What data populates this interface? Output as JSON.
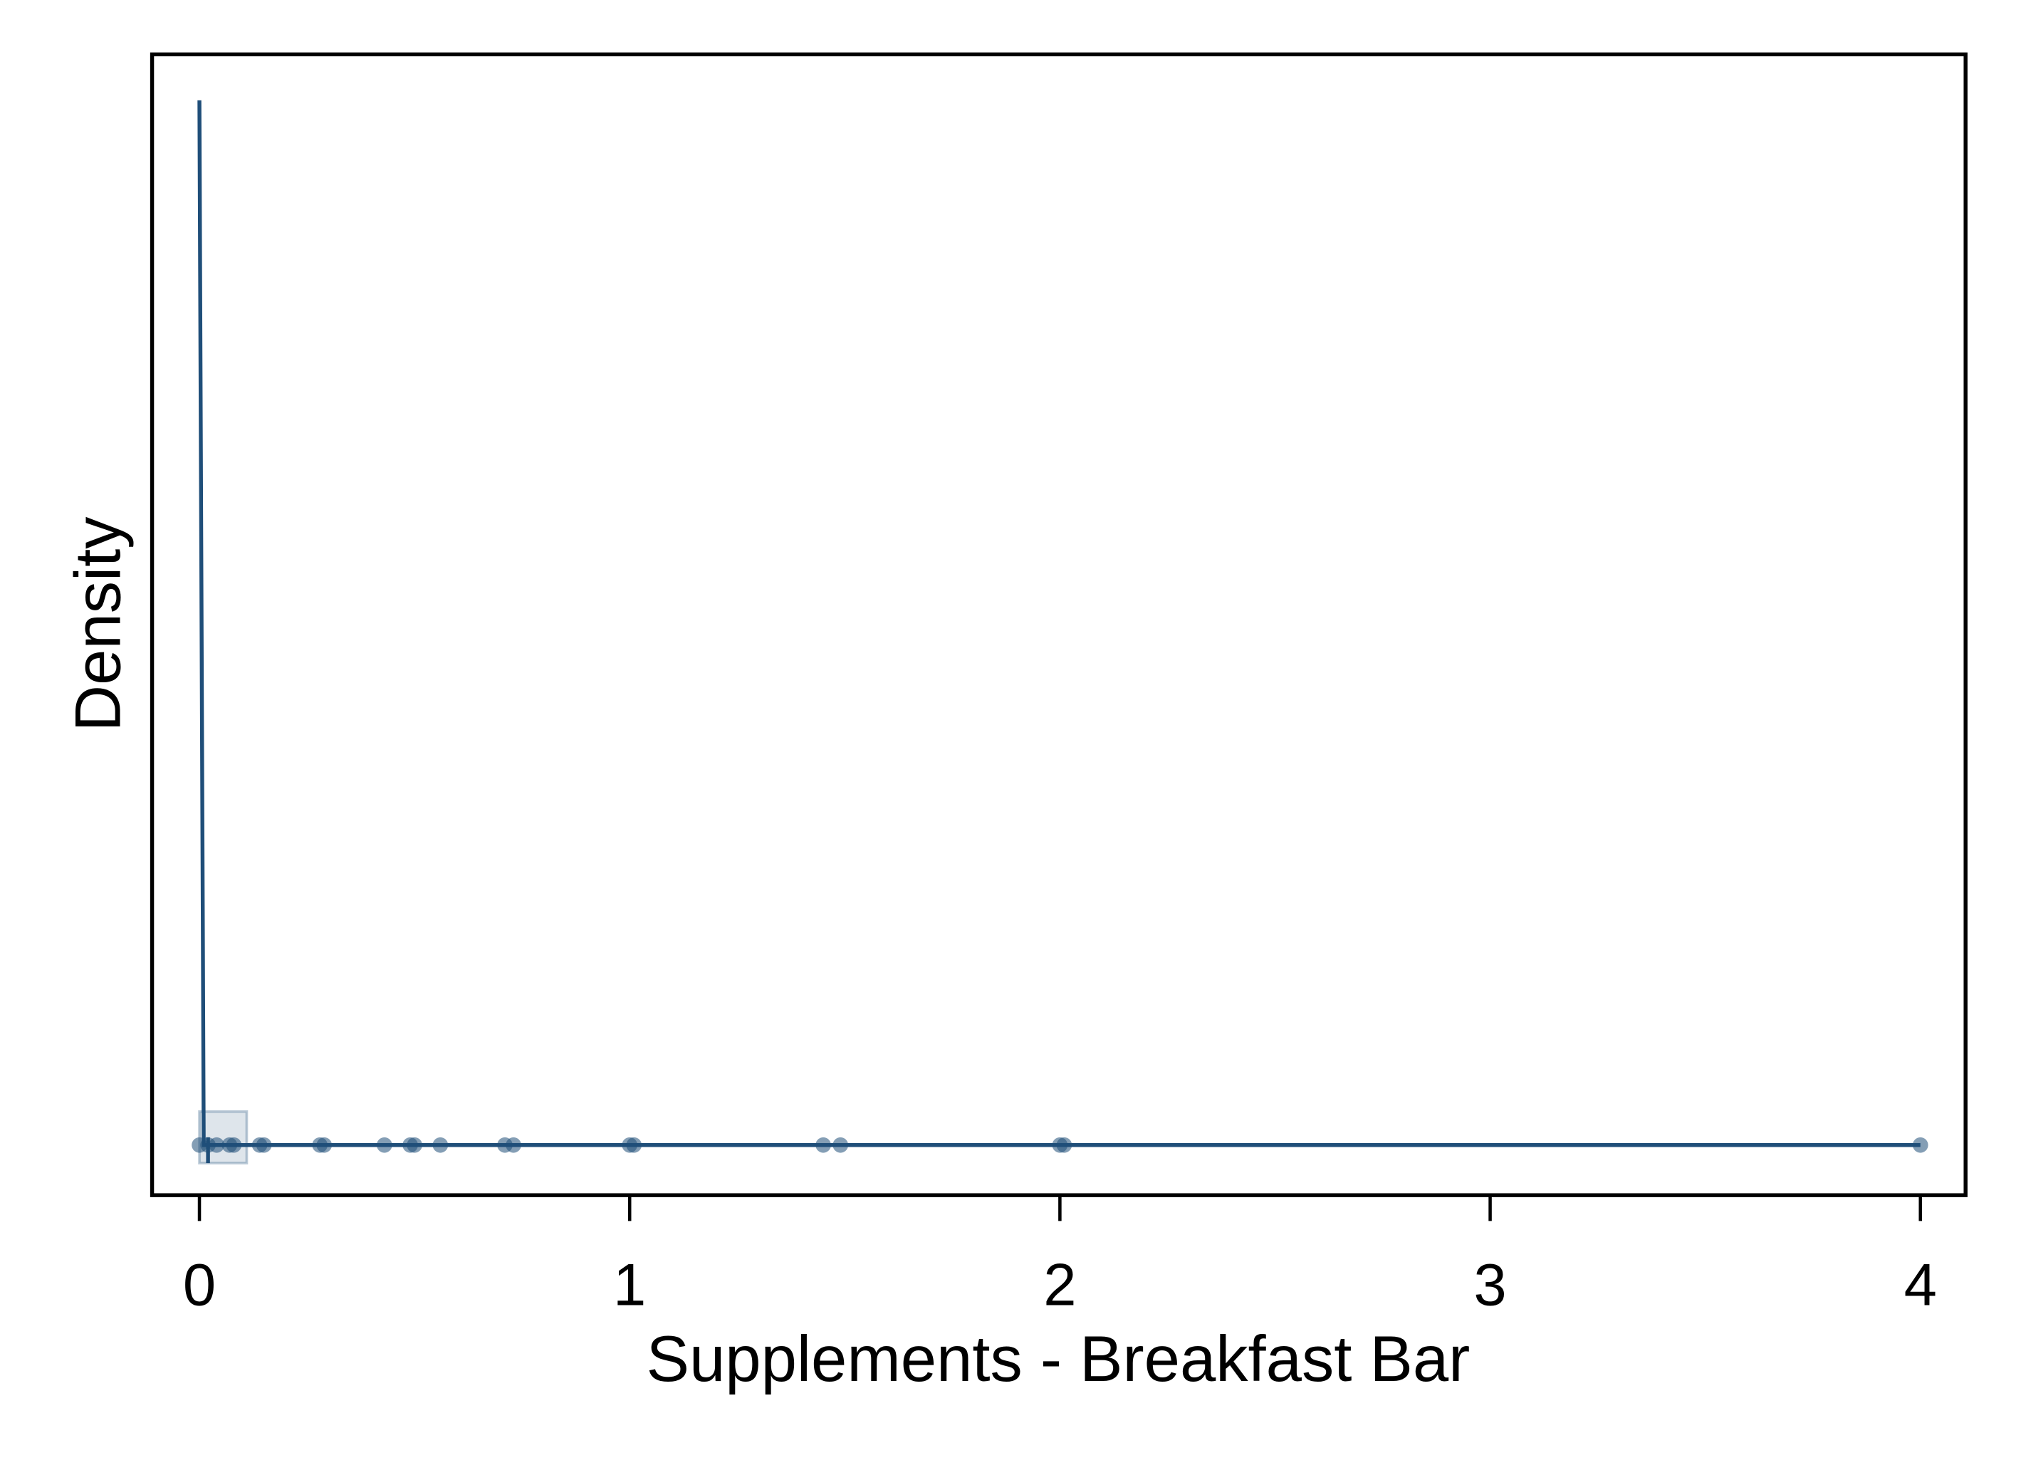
{
  "chart_data": {
    "type": "density",
    "xlabel": "Supplements - Breakfast Bar",
    "ylabel": "Density",
    "xlim": [
      -0.11,
      4.105
    ],
    "ylim": [
      -0.48,
      10.44
    ],
    "xticks": [
      0,
      1,
      2,
      3,
      4
    ],
    "color": "#1f4e79",
    "density": {
      "x": [
        0,
        0.01,
        0.05,
        0.5,
        1,
        2,
        3,
        4
      ],
      "y": [
        10,
        0,
        0,
        0,
        0,
        0,
        0,
        0
      ]
    },
    "points": {
      "x": [
        0,
        0.02,
        0.04,
        0.07,
        0.08,
        0.14,
        0.15,
        0.28,
        0.29,
        0.43,
        0.49,
        0.5,
        0.56,
        0.71,
        0.73,
        1,
        1.01,
        1.45,
        1.49,
        2,
        2.01,
        4
      ],
      "y": [
        0,
        0,
        0,
        0,
        0,
        0,
        0,
        0,
        0,
        0,
        0,
        0,
        0,
        0,
        0,
        0,
        0,
        0,
        0,
        0,
        0,
        0
      ]
    },
    "box": {
      "low": 0,
      "high": 0.11,
      "median": 0.02
    }
  }
}
